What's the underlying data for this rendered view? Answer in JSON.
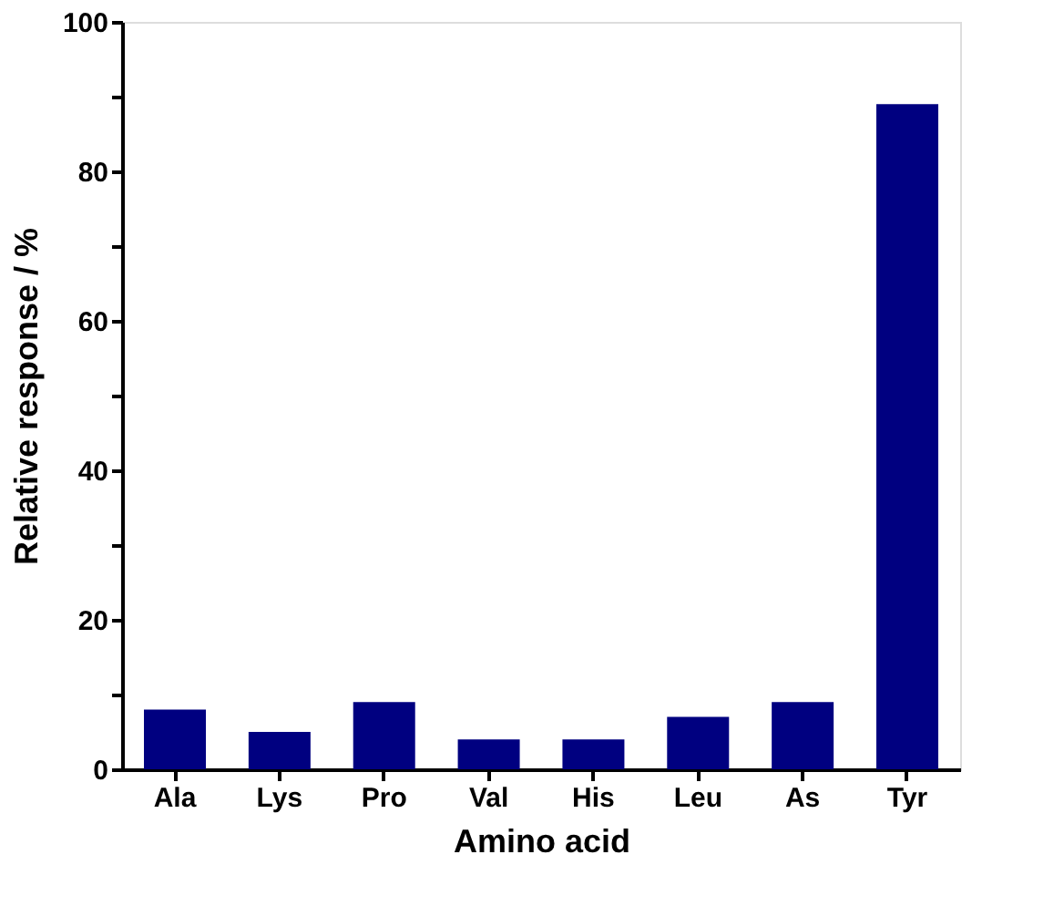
{
  "chart_data": {
    "type": "bar",
    "xlabel": "Amino acid",
    "ylabel": "Relative response  / %",
    "categories": [
      "Ala",
      "Lys",
      "Pro",
      "Val",
      "His",
      "Leu",
      "As",
      "Tyr"
    ],
    "values": [
      8,
      5,
      9,
      4,
      4,
      7,
      9,
      89
    ],
    "color": "#000080",
    "ylim": [
      0,
      100
    ],
    "yticks": [
      0,
      {
        "value": 10,
        "label": null
      },
      20,
      {
        "value": 30,
        "label": null
      },
      40,
      {
        "value": 50,
        "label": null
      },
      60,
      {
        "value": 70,
        "label": null
      },
      80,
      {
        "value": 90,
        "label": null
      },
      100
    ],
    "grid": false
  }
}
